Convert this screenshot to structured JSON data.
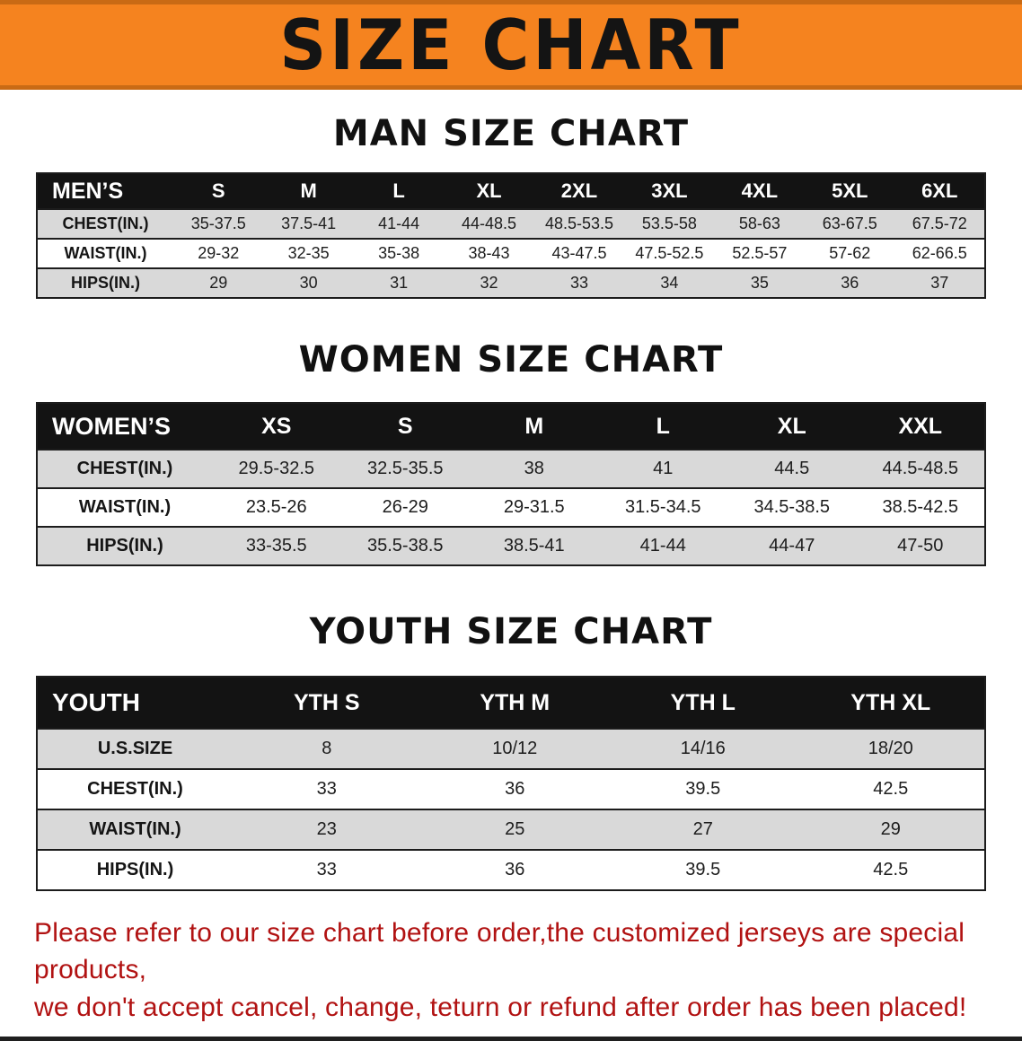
{
  "banner": {
    "title": "SIZE CHART",
    "bg_color": "#f5831f"
  },
  "chart_data": [
    {
      "type": "table",
      "title": "MAN SIZE CHART",
      "columns": [
        "MEN’S",
        "S",
        "M",
        "L",
        "XL",
        "2XL",
        "3XL",
        "4XL",
        "5XL",
        "6XL"
      ],
      "rows": [
        [
          "CHEST(IN.)",
          "35-37.5",
          "37.5-41",
          "41-44",
          "44-48.5",
          "48.5-53.5",
          "53.5-58",
          "58-63",
          "63-67.5",
          "67.5-72"
        ],
        [
          "WAIST(IN.)",
          "29-32",
          "32-35",
          "35-38",
          "38-43",
          "43-47.5",
          "47.5-52.5",
          "52.5-57",
          "57-62",
          "62-66.5"
        ],
        [
          "HIPS(IN.)",
          "29",
          "30",
          "31",
          "32",
          "33",
          "34",
          "35",
          "36",
          "37"
        ]
      ]
    },
    {
      "type": "table",
      "title": "WOMEN SIZE CHART",
      "columns": [
        "WOMEN’S",
        "XS",
        "S",
        "M",
        "L",
        "XL",
        "XXL"
      ],
      "rows": [
        [
          "CHEST(IN.)",
          "29.5-32.5",
          "32.5-35.5",
          "38",
          "41",
          "44.5",
          "44.5-48.5"
        ],
        [
          "WAIST(IN.)",
          "23.5-26",
          "26-29",
          "29-31.5",
          "31.5-34.5",
          "34.5-38.5",
          "38.5-42.5"
        ],
        [
          "HIPS(IN.)",
          "33-35.5",
          "35.5-38.5",
          "38.5-41",
          "41-44",
          "44-47",
          "47-50"
        ]
      ]
    },
    {
      "type": "table",
      "title": "YOUTH SIZE CHART",
      "columns": [
        "YOUTH",
        "YTH S",
        "YTH M",
        "YTH L",
        "YTH XL"
      ],
      "rows": [
        [
          "U.S.SIZE",
          "8",
          "10/12",
          "14/16",
          "18/20"
        ],
        [
          "CHEST(IN.)",
          "33",
          "36",
          "39.5",
          "42.5"
        ],
        [
          "WAIST(IN.)",
          "23",
          "25",
          "27",
          "29"
        ],
        [
          "HIPS(IN.)",
          "33",
          "36",
          "39.5",
          "42.5"
        ]
      ]
    }
  ],
  "footer": {
    "line1": "Please refer to our size chart before order,the customized jerseys are special products,",
    "line2": "we don't accept cancel, change, teturn or refund after order has been placed!",
    "color": "#b11212"
  }
}
